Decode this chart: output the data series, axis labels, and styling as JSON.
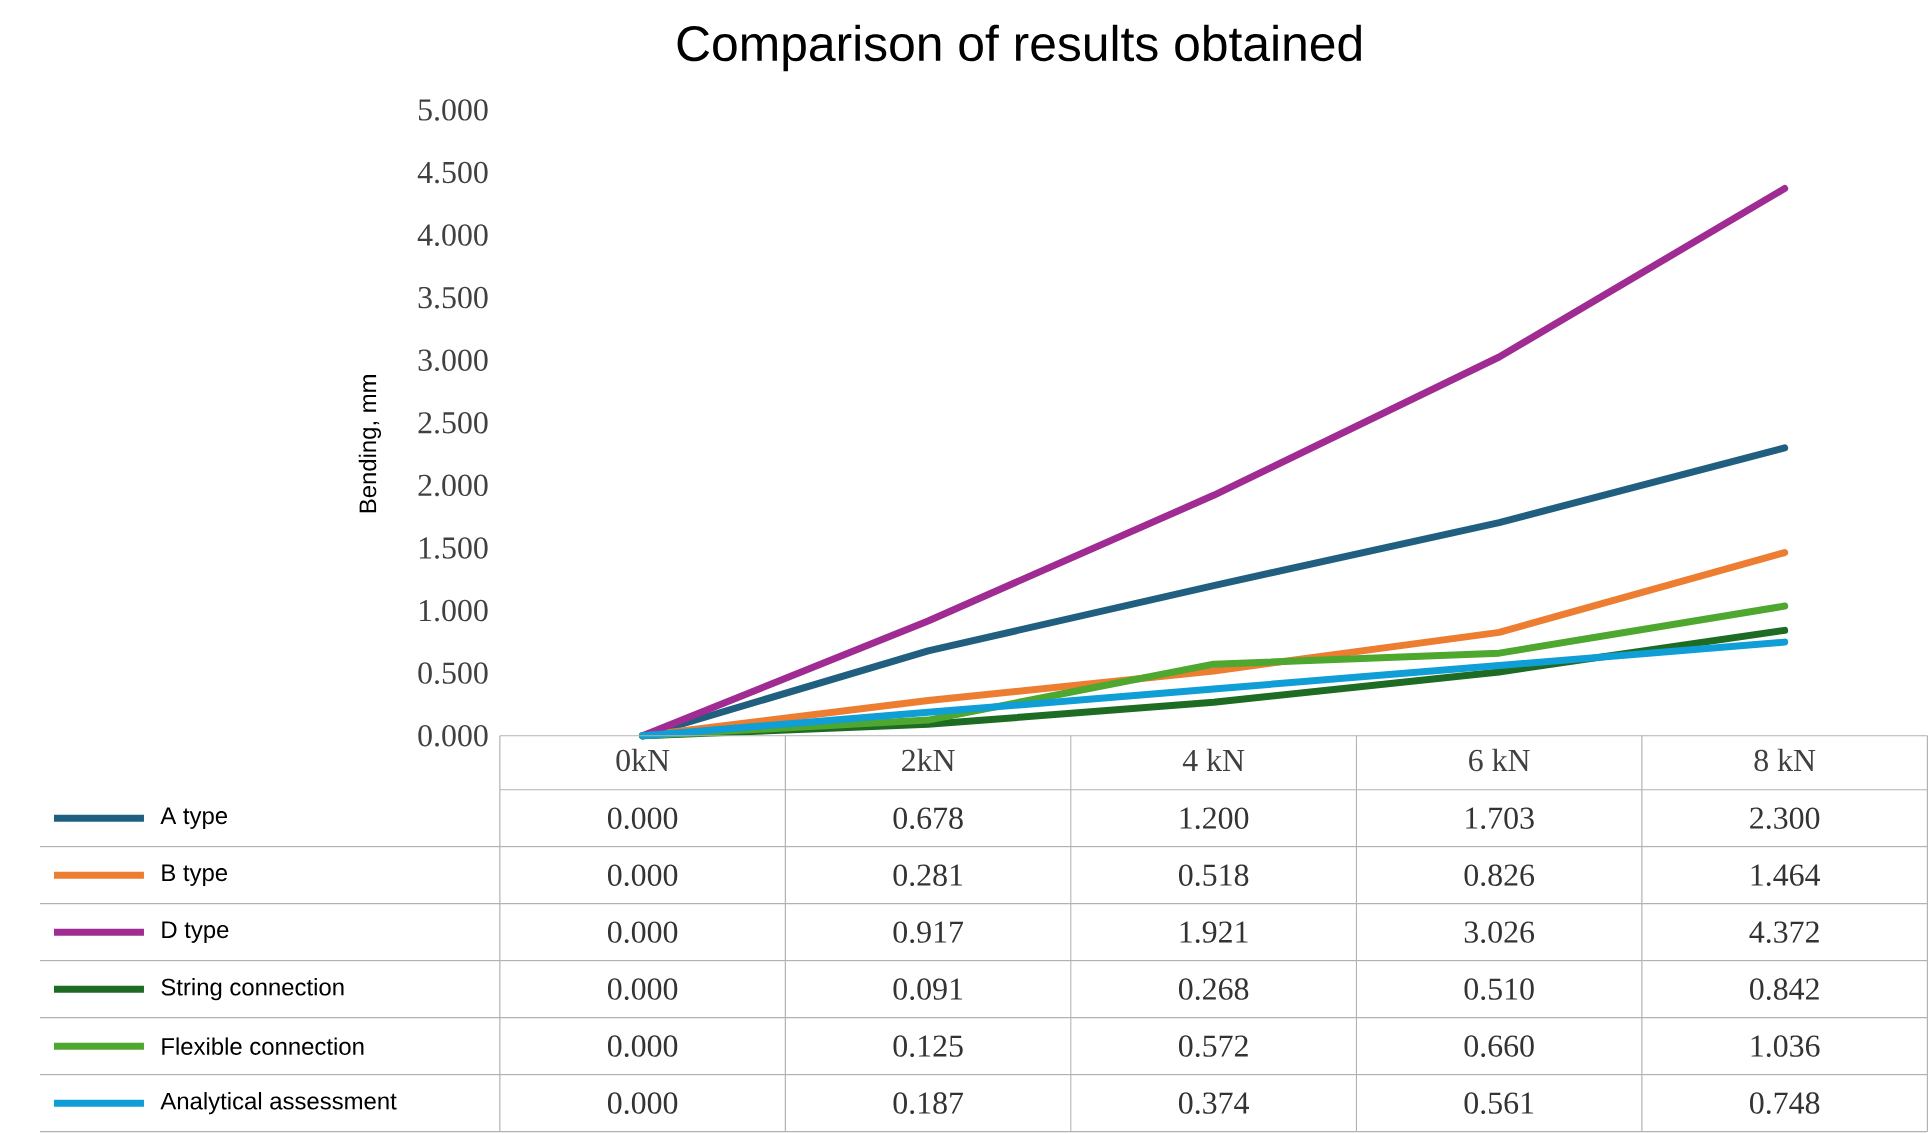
{
  "chart_data": {
    "type": "line",
    "title": "Comparison of results obtained",
    "ylabel": "Bending, mm",
    "categories": [
      "0kN",
      "2kN",
      "4 kN",
      "6 kN",
      "8 kN"
    ],
    "series": [
      {
        "name": "A type",
        "color": "#215f80",
        "values": [
          0.0,
          0.678,
          1.2,
          1.703,
          2.3
        ],
        "value_labels": [
          "0.000",
          "0.678",
          "1.200",
          "1.703",
          "2.300"
        ]
      },
      {
        "name": "B type",
        "color": "#ed7d31",
        "values": [
          0.0,
          0.281,
          0.518,
          0.826,
          1.464
        ],
        "value_labels": [
          "0.000",
          "0.281",
          "0.518",
          "0.826",
          "1.464"
        ]
      },
      {
        "name": "D type",
        "color": "#a02b93",
        "values": [
          0.0,
          0.917,
          1.921,
          3.026,
          4.372
        ],
        "value_labels": [
          "0.000",
          "0.917",
          "1.921",
          "3.026",
          "4.372"
        ]
      },
      {
        "name": "String connection",
        "color": "#1e6b24",
        "values": [
          0.0,
          0.091,
          0.268,
          0.51,
          0.842
        ],
        "value_labels": [
          "0.000",
          "0.091",
          "0.268",
          "0.510",
          "0.842"
        ]
      },
      {
        "name": "Flexible connection",
        "color": "#4ea72e",
        "values": [
          0.0,
          0.125,
          0.572,
          0.66,
          1.036
        ],
        "value_labels": [
          "0.000",
          "0.125",
          "0.572",
          "0.660",
          "1.036"
        ]
      },
      {
        "name": "Analytical assessment",
        "color": "#0f9ed5",
        "values": [
          0.0,
          0.187,
          0.374,
          0.561,
          0.748
        ],
        "value_labels": [
          "0.000",
          "0.187",
          "0.374",
          "0.561",
          "0.748"
        ]
      }
    ],
    "ylim": [
      0,
      5
    ],
    "yticks": [
      {
        "value": 0,
        "label": "0.000"
      },
      {
        "value": 0.5,
        "label": "0.500"
      },
      {
        "value": 1,
        "label": "1.000"
      },
      {
        "value": 1.5,
        "label": "1.500"
      },
      {
        "value": 2,
        "label": "2.000"
      },
      {
        "value": 2.5,
        "label": "2.500"
      },
      {
        "value": 3,
        "label": "3.000"
      },
      {
        "value": 3.5,
        "label": "3.500"
      },
      {
        "value": 4,
        "label": "4.000"
      },
      {
        "value": 4.5,
        "label": "4.500"
      },
      {
        "value": 5,
        "label": "5.000"
      }
    ],
    "legend": "bottom",
    "line_style": "solid"
  }
}
